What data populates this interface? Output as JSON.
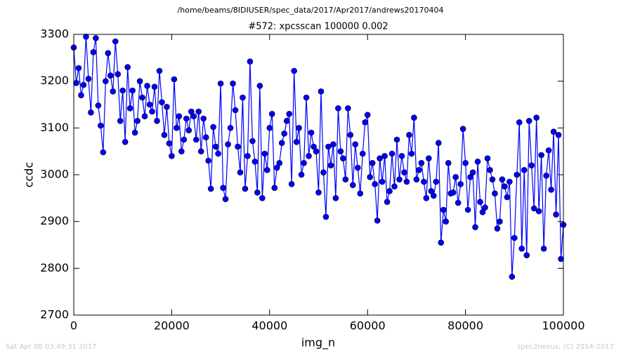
{
  "chart_data": {
    "type": "line",
    "header": "/home/beams/8IDIUSER/spec_data/2017/Apr2017/andrews20170404",
    "title": "#572: xpcsscan 100000 0.002",
    "xlabel": "img_n",
    "ylabel": "ccdc",
    "footer_left": "Sat Apr 08 03:49:31 2017",
    "footer_right": "spec2nexus, (C) 2014-2017",
    "color": "#0000ff",
    "marker": "circle",
    "xlim": [
      0,
      100000
    ],
    "xticks": [
      0,
      20000,
      40000,
      60000,
      80000,
      100000
    ],
    "ylim": [
      2700,
      3300
    ],
    "yticks": [
      2700,
      2800,
      2900,
      3000,
      3100,
      3200,
      3300
    ],
    "x": [
      0,
      500,
      1000,
      1500,
      2000,
      2500,
      3000,
      3500,
      4000,
      4500,
      5000,
      5500,
      6000,
      6500,
      7000,
      7500,
      8000,
      8500,
      9000,
      9500,
      10000,
      10500,
      11000,
      11500,
      12000,
      12500,
      13000,
      13500,
      14000,
      14500,
      15000,
      15500,
      16000,
      16500,
      17000,
      17500,
      18000,
      18500,
      19000,
      19500,
      20000,
      20500,
      21000,
      21500,
      22000,
      22500,
      23000,
      23500,
      24000,
      24500,
      25000,
      25500,
      26000,
      26500,
      27000,
      27500,
      28000,
      28500,
      29000,
      29500,
      30000,
      30500,
      31000,
      31500,
      32000,
      32500,
      33000,
      33500,
      34000,
      34500,
      35000,
      35500,
      36000,
      36500,
      37000,
      37500,
      38000,
      38500,
      39000,
      39500,
      40000,
      40500,
      41000,
      41500,
      42000,
      42500,
      43000,
      43500,
      44000,
      44500,
      45000,
      45500,
      46000,
      46500,
      47000,
      47500,
      48000,
      48500,
      49000,
      49500,
      50000,
      50500,
      51000,
      51500,
      52000,
      52500,
      53000,
      53500,
      54000,
      54500,
      55000,
      55500,
      56000,
      56500,
      57000,
      57500,
      58000,
      58500,
      59000,
      59500,
      60000,
      60500,
      61000,
      61500,
      62000,
      62500,
      63000,
      63500,
      64000,
      64500,
      65000,
      65500,
      66000,
      66500,
      67000,
      67500,
      68000,
      68500,
      69000,
      69500,
      70000,
      70500,
      71000,
      71500,
      72000,
      72500,
      73000,
      73500,
      74000,
      74500,
      75000,
      75500,
      76000,
      76500,
      77000,
      77500,
      78000,
      78500,
      79000,
      79500,
      80000,
      80500,
      81000,
      81500,
      82000,
      82500,
      83000,
      83500,
      84000,
      84500,
      85000,
      85500,
      86000,
      86500,
      87000,
      87500,
      88000,
      88500,
      89000,
      89500,
      90000,
      90500,
      91000,
      91500,
      92000,
      92500,
      93000,
      93500,
      94000,
      94500,
      95000,
      95500,
      96000,
      96500,
      97000,
      97500,
      98000,
      98500,
      99000,
      99500,
      100000
    ],
    "values": [
      3272,
      3196,
      3228,
      3170,
      3192,
      3295,
      3205,
      3133,
      3262,
      3292,
      3148,
      3105,
      3048,
      3200,
      3260,
      3212,
      3178,
      3285,
      3215,
      3115,
      3180,
      3070,
      3230,
      3142,
      3180,
      3090,
      3115,
      3200,
      3165,
      3125,
      3190,
      3150,
      3135,
      3188,
      3115,
      3222,
      3155,
      3085,
      3145,
      3067,
      3040,
      3204,
      3100,
      3125,
      3050,
      3075,
      3120,
      3095,
      3135,
      3125,
      3075,
      3135,
      3050,
      3120,
      3080,
      3030,
      2970,
      3102,
      3060,
      3045,
      3195,
      2972,
      2948,
      3065,
      3100,
      3195,
      3138,
      3060,
      3005,
      3165,
      2970,
      3040,
      3242,
      3072,
      3028,
      2962,
      3190,
      2950,
      3045,
      3010,
      3100,
      3130,
      2972,
      3015,
      3025,
      3068,
      3088,
      3115,
      3130,
      2980,
      3222,
      3070,
      3100,
      3000,
      3025,
      3165,
      3040,
      3090,
      3060,
      3050,
      2962,
      3178,
      3005,
      2910,
      3060,
      3020,
      3065,
      2950,
      3142,
      3050,
      3035,
      2990,
      3142,
      3085,
      2978,
      3065,
      3015,
      2960,
      3045,
      3112,
      3128,
      2995,
      3025,
      2980,
      2902,
      3035,
      2985,
      3040,
      2942,
      2965,
      3045,
      2975,
      3075,
      2990,
      3040,
      3005,
      2985,
      3085,
      3045,
      3122,
      2990,
      3010,
      3025,
      2985,
      2950,
      3035,
      2965,
      2955,
      2985,
      3068,
      2855,
      2925,
      2900,
      3025,
      2960,
      2962,
      2995,
      2940,
      2980,
      3098,
      3025,
      2925,
      2995,
      3005,
      2888,
      3028,
      2942,
      2920,
      2930,
      3035,
      3010,
      2990,
      2960,
      2885,
      2900,
      2990,
      2975,
      2952,
      2985,
      2782,
      2865,
      3000,
      3112,
      2842,
      3010,
      2828,
      3115,
      3020,
      2928,
      3122,
      2922,
      3042,
      2842,
      2998,
      3052,
      2968,
      3092,
      2915,
      3085,
      2820,
      2893
    ]
  }
}
